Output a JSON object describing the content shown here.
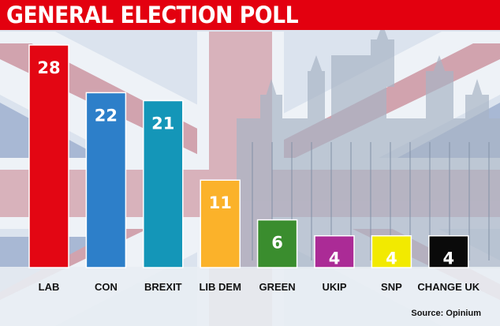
{
  "title": "GENERAL ELECTION POLL",
  "source": "Source: Opinium",
  "colors": {
    "title_bar": "#e3000f",
    "title_text": "#ffffff",
    "label_text": "#111111",
    "background": "#dfe6ef"
  },
  "chart_data": {
    "type": "bar",
    "title": "GENERAL ELECTION POLL",
    "xlabel": "",
    "ylabel": "",
    "ylim": [
      0,
      28
    ],
    "grid": false,
    "legend": "none",
    "categories": [
      "LAB",
      "CON",
      "BREXIT",
      "LIB DEM",
      "GREEN",
      "UKIP",
      "SNP",
      "CHANGE UK"
    ],
    "values": [
      28,
      22,
      21,
      11,
      6,
      4,
      4,
      4
    ],
    "bar_colors": [
      "#e30613",
      "#2d7fc9",
      "#1496b8",
      "#fbb22a",
      "#3a8d2e",
      "#ab2b96",
      "#f2ea00",
      "#0a0a0a"
    ],
    "value_label_colors": [
      "#ffffff",
      "#ffffff",
      "#ffffff",
      "#ffffff",
      "#ffffff",
      "#ffffff",
      "#ffffff",
      "#ffffff"
    ]
  }
}
